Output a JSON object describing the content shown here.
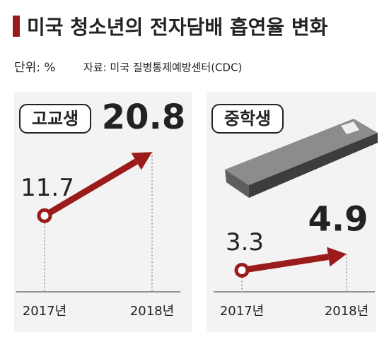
{
  "title": "미국 청소년의 전자담배 흡연율 변화",
  "unit": "단위: %",
  "source": "자료: 미국 질병통제예방센터(CDC)",
  "chart_data": [
    {
      "type": "line",
      "title": "고교생",
      "categories": [
        "2017년",
        "2018년"
      ],
      "values": [
        11.7,
        20.8
      ],
      "color": "#9b1b1b",
      "ylim": [
        0,
        28
      ]
    },
    {
      "type": "line",
      "title": "중학생",
      "categories": [
        "2017년",
        "2018년"
      ],
      "values": [
        3.3,
        4.9
      ],
      "color": "#9b1b1b",
      "ylim": [
        0,
        20
      ]
    }
  ]
}
